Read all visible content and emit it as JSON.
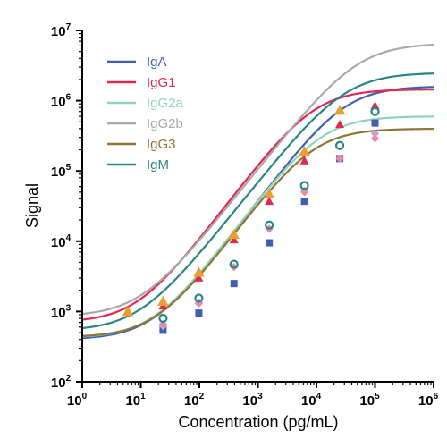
{
  "chart_data": {
    "type": "line",
    "xlabel": "Concentration (pg/mL)",
    "ylabel": "Signal",
    "x_scale": "log",
    "y_scale": "log",
    "xlim": [
      1,
      1000000
    ],
    "ylim": [
      100,
      10000000
    ],
    "x_ticks": [
      {
        "base": "10",
        "exp": "0"
      },
      {
        "base": "10",
        "exp": "1"
      },
      {
        "base": "10",
        "exp": "2"
      },
      {
        "base": "10",
        "exp": "3"
      },
      {
        "base": "10",
        "exp": "4"
      },
      {
        "base": "10",
        "exp": "5"
      },
      {
        "base": "10",
        "exp": "6"
      }
    ],
    "y_ticks": [
      {
        "base": "10",
        "exp": "2"
      },
      {
        "base": "10",
        "exp": "3"
      },
      {
        "base": "10",
        "exp": "4"
      },
      {
        "base": "10",
        "exp": "5"
      },
      {
        "base": "10",
        "exp": "6"
      },
      {
        "base": "10",
        "exp": "7"
      }
    ],
    "legend_position": "top-left",
    "grid": false,
    "series": [
      {
        "name": "IgA",
        "color": "#3f5fb0",
        "marker": "square",
        "fit": {
          "bottom": 400,
          "top": 1600000,
          "ec50": 30000,
          "hill": 1.1
        },
        "points": [
          [
            24,
            540
          ],
          [
            98,
            950
          ],
          [
            390,
            2500
          ],
          [
            1560,
            9500
          ],
          [
            6250,
            37000
          ],
          [
            25000,
            150000
          ],
          [
            100000,
            480000
          ]
        ]
      },
      {
        "name": "IgG1",
        "color": "#e0284f",
        "marker": "triangle",
        "fit": {
          "bottom": 700,
          "top": 1450000,
          "ec50": 9000,
          "hill": 1.1
        },
        "points": [
          [
            24,
            1200
          ],
          [
            98,
            3000
          ],
          [
            390,
            10500
          ],
          [
            1560,
            37000
          ],
          [
            6250,
            140000
          ],
          [
            25000,
            460000
          ],
          [
            100000,
            850000
          ]
        ]
      },
      {
        "name": "IgG2a",
        "color": "#8fd3b9",
        "marker": "diamond",
        "fit": {
          "bottom": 420,
          "top": 600000,
          "ec50": 12000,
          "hill": 1.1
        },
        "points": [
          [
            24,
            620
          ],
          [
            98,
            1350
          ],
          [
            390,
            4300
          ],
          [
            1560,
            15000
          ],
          [
            6250,
            52000
          ],
          [
            25000,
            150000
          ],
          [
            100000,
            340000
          ]
        ]
      },
      {
        "name": "IgG2b",
        "color": "#a8a8a8",
        "marker": "triangle-orange",
        "fit": {
          "bottom": 850,
          "top": 6500000,
          "ec50": 50000,
          "hill": 1.05
        },
        "points": [
          [
            6,
            1000
          ],
          [
            24,
            1400
          ],
          [
            98,
            3600
          ],
          [
            390,
            12500
          ],
          [
            1560,
            47000
          ],
          [
            6250,
            190000
          ],
          [
            25000,
            730000
          ]
        ]
      },
      {
        "name": "IgG3",
        "color": "#8f7438",
        "marker": "diamond-pink",
        "fit": {
          "bottom": 430,
          "top": 400000,
          "ec50": 9000,
          "hill": 1.1
        },
        "points": [
          [
            24,
            660
          ],
          [
            98,
            1300
          ],
          [
            390,
            4300
          ],
          [
            1560,
            15000
          ],
          [
            6250,
            50000
          ],
          [
            25000,
            150000
          ],
          [
            100000,
            290000
          ]
        ]
      },
      {
        "name": "IgM",
        "color": "#2a8680",
        "marker": "circle",
        "fit": {
          "bottom": 530,
          "top": 2500000,
          "ec50": 30000,
          "hill": 1.05
        },
        "points": [
          [
            24,
            800
          ],
          [
            98,
            1550
          ],
          [
            390,
            4700
          ],
          [
            1560,
            17000
          ],
          [
            6250,
            62000
          ],
          [
            25000,
            230000
          ],
          [
            100000,
            700000
          ]
        ]
      }
    ]
  }
}
